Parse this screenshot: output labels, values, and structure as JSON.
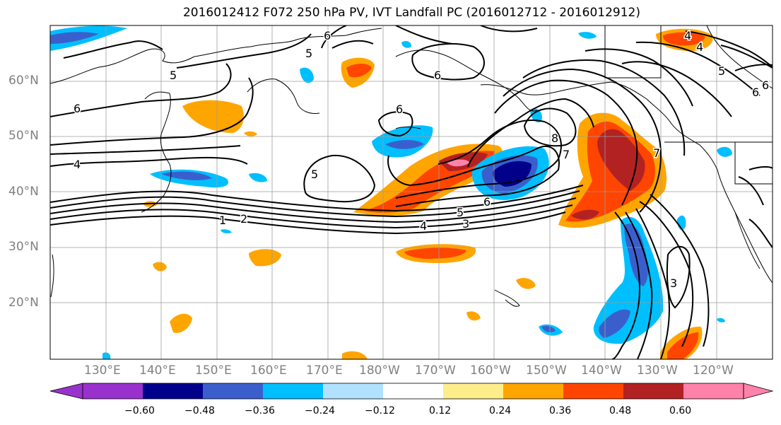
{
  "title": "2016012412 F072 250 hPa PV, IVT Landfall PC (2016012712 - 2016012912)",
  "lat_labels": [
    "60°N",
    "50°N",
    "40°N",
    "30°N",
    "20°N"
  ],
  "lon_labels": [
    "130°E",
    "140°E",
    "150°E",
    "160°E",
    "170°E",
    "180°W",
    "170°W",
    "160°W",
    "150°W",
    "140°W",
    "130°W",
    "120°W"
  ],
  "contour_labels": [
    "6",
    "5",
    "5",
    "6",
    "6",
    "4",
    "6",
    "4",
    "5",
    "1",
    "2",
    "3",
    "4",
    "5",
    "6",
    "7",
    "8",
    "6",
    "3",
    "4",
    "5",
    "6",
    "7"
  ],
  "colorbar": {
    "colors": [
      "#9932cc",
      "#00008b",
      "#3a5fcd",
      "#00bfff",
      "#b0e2ff",
      "#ffffff",
      "#ffec8b",
      "#ffa500",
      "#ff4500",
      "#b22222",
      "#ff82ab"
    ],
    "ticks": [
      "−0.60",
      "−0.48",
      "−0.36",
      "−0.24",
      "−0.12",
      "0.12",
      "0.24",
      "0.36",
      "0.48",
      "0.60"
    ]
  }
}
